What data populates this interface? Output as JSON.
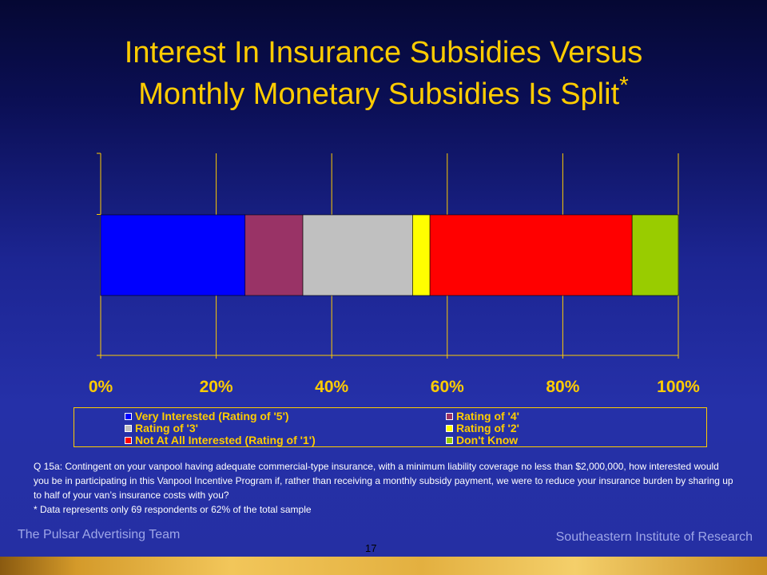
{
  "slide": {
    "title_line1": "Interest In Insurance Subsidies Versus",
    "title_line2": "Monthly Monetary Subsidies Is Split",
    "title_marker": "*",
    "footnote_question": "Q 15a:  Contingent on your vanpool having adequate commercial-type insurance, with a minimum liability coverage no less than $2,000,000, how interested would you be in participating in this Vanpool Incentive Program if, rather than receiving a monthly subsidy payment, we were to reduce your insurance burden by sharing up to half of your van’s insurance costs with you?",
    "footnote_note": "*  Data represents only 69 respondents or 62% of the total sample",
    "footer_left": "The Pulsar Advertising Team",
    "footer_right": "Southeastern Institute of Research",
    "page_number": "17",
    "colors": {
      "title": "#ffcc00",
      "axis": "#ffcc00",
      "tick_labels": "#ffcc00",
      "footer_text": "#9ea6e8"
    }
  },
  "chart_data": {
    "type": "bar",
    "orientation": "horizontal",
    "stacked": true,
    "categories": [
      ""
    ],
    "title": "",
    "xlabel": "",
    "ylabel": "",
    "xlim": [
      0,
      100
    ],
    "x_ticks": [
      "0%",
      "20%",
      "40%",
      "60%",
      "80%",
      "100%"
    ],
    "grid": "vertical",
    "legend_position": "bottom",
    "series": [
      {
        "name": "Very Interested (Rating of '5')",
        "values": [
          25
        ],
        "color": "#0000ff"
      },
      {
        "name": "Rating of '4'",
        "values": [
          10
        ],
        "color": "#993366"
      },
      {
        "name": "Rating of '3'",
        "values": [
          19
        ],
        "color": "#c0c0c0"
      },
      {
        "name": "Rating of '2'",
        "values": [
          3
        ],
        "color": "#ffff00"
      },
      {
        "name": "Not At All Interested (Rating of '1')",
        "values": [
          35
        ],
        "color": "#ff0000"
      },
      {
        "name": "Don't Know",
        "values": [
          8
        ],
        "color": "#99cc00"
      }
    ]
  }
}
